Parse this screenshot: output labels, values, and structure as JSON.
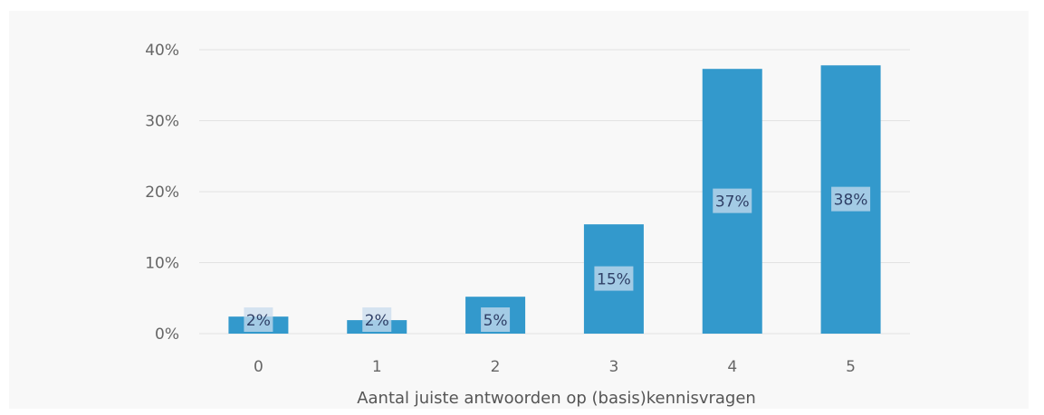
{
  "chart_data": {
    "type": "bar",
    "categories": [
      "0",
      "1",
      "2",
      "3",
      "4",
      "5"
    ],
    "values": [
      2.4,
      1.9,
      5.2,
      15.4,
      37.3,
      37.8
    ],
    "data_labels": [
      "2%",
      "2%",
      "5%",
      "15%",
      "37%",
      "38%"
    ],
    "xlabel": "Aantal juiste antwoorden op (basis)kennisvragen",
    "ylabel": "",
    "ylim": [
      0,
      40
    ],
    "yticks": [
      0,
      10,
      20,
      30,
      40
    ],
    "ytick_labels": [
      "0%",
      "10%",
      "20%",
      "30%",
      "40%"
    ],
    "grid": true,
    "legend": "none",
    "colors": {
      "bar": "#3399cc",
      "label_box": "#c9dcee",
      "grid": "#e2e2e2",
      "frame": "#f8f8f8"
    }
  }
}
